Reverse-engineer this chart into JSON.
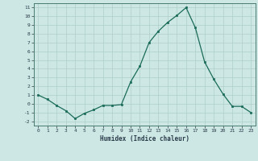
{
  "x": [
    0,
    1,
    2,
    3,
    4,
    5,
    6,
    7,
    8,
    9,
    10,
    11,
    12,
    13,
    14,
    15,
    16,
    17,
    18,
    19,
    20,
    21,
    22,
    23
  ],
  "y": [
    1,
    0.5,
    -0.2,
    -0.8,
    -1.7,
    -1.1,
    -0.7,
    -0.2,
    -0.2,
    -0.1,
    2.5,
    4.3,
    7.0,
    8.3,
    9.3,
    10.1,
    11.0,
    8.7,
    4.8,
    2.8,
    1.1,
    -0.3,
    -0.3,
    -1.0
  ],
  "xlabel": "Humidex (Indice chaleur)",
  "xlim": [
    -0.5,
    23.5
  ],
  "ylim": [
    -2.5,
    11.5
  ],
  "yticks": [
    -2,
    -1,
    0,
    1,
    2,
    3,
    4,
    5,
    6,
    7,
    8,
    9,
    10,
    11
  ],
  "xticks": [
    0,
    1,
    2,
    3,
    4,
    5,
    6,
    7,
    8,
    9,
    10,
    11,
    12,
    13,
    14,
    15,
    16,
    17,
    18,
    19,
    20,
    21,
    22,
    23
  ],
  "line_color": "#1a6b5a",
  "marker_color": "#1a6b5a",
  "bg_color": "#cde8e4",
  "grid_color": "#aecfca",
  "text_color": "#2a3a4a",
  "spine_color": "#4a7a70"
}
